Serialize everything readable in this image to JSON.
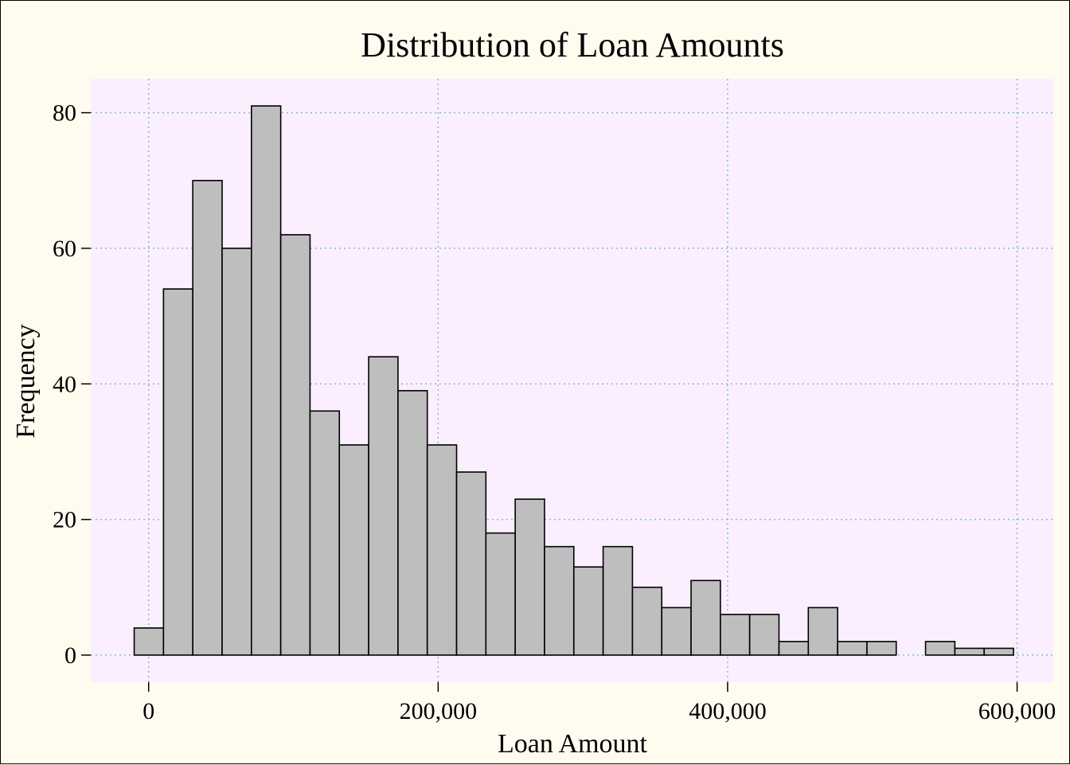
{
  "chart_data": {
    "type": "bar",
    "title": "Distribution of Loan Amounts",
    "xlabel": "Loan Amount",
    "ylabel": "Frequency",
    "bin_width": 20250,
    "bin_start": -10000,
    "values": [
      4,
      54,
      70,
      60,
      81,
      62,
      36,
      31,
      44,
      39,
      31,
      27,
      18,
      23,
      16,
      13,
      16,
      10,
      7,
      11,
      6,
      6,
      2,
      7,
      2,
      2,
      0,
      2,
      1,
      1
    ],
    "x_ticks": [
      0,
      200000,
      400000,
      600000
    ],
    "x_tick_labels": [
      "0",
      "200,000",
      "400,000",
      "600,000"
    ],
    "y_ticks": [
      0,
      20,
      40,
      60,
      80
    ],
    "y_tick_labels": [
      "0",
      "20",
      "40",
      "60",
      "80"
    ],
    "xlim": [
      -40000,
      625000
    ],
    "ylim": [
      -4,
      85
    ],
    "grid": true,
    "colors": {
      "background": "#fffbef",
      "plot_background": "#fbefff",
      "bar_fill": "#bebebe",
      "bar_stroke": "#000000",
      "grid": "#7fbfbf"
    }
  }
}
